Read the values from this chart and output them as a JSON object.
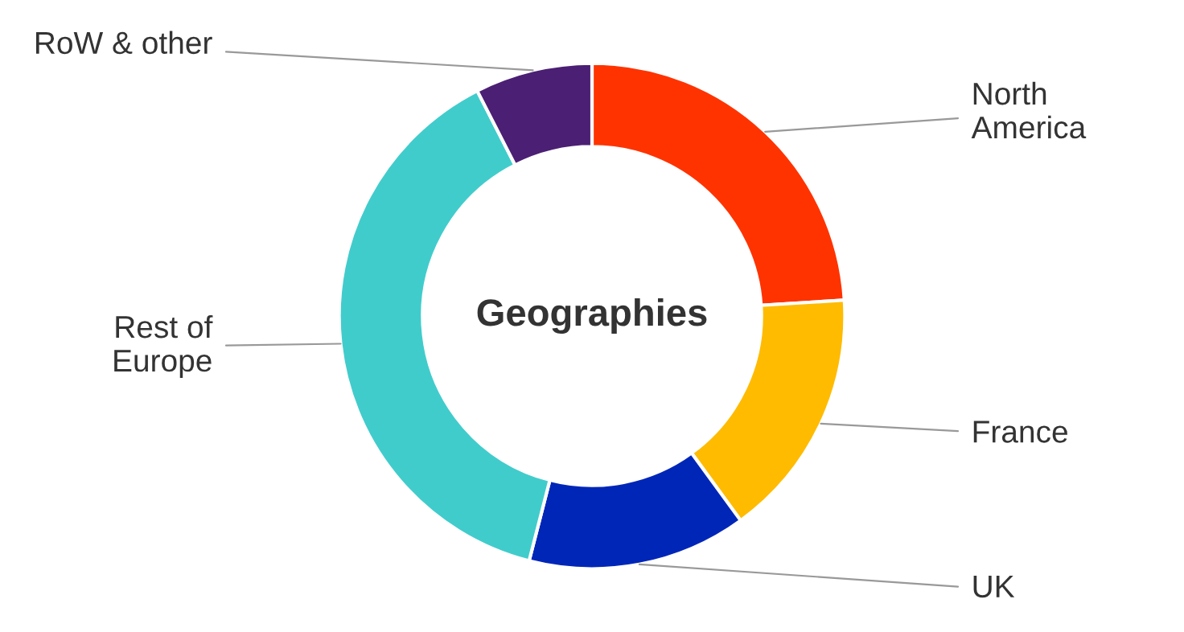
{
  "chart_data": {
    "type": "donut",
    "title": "Geographies",
    "categories": [
      "North\nAmerica",
      "France",
      "UK",
      "Rest of\nEurope",
      "RoW & other"
    ],
    "values": [
      24,
      16,
      14,
      38.5,
      7.5
    ],
    "colors": [
      "#ff3300",
      "#ffbb00",
      "#0026b8",
      "#41cccc",
      "#4b1f74"
    ],
    "legend": false
  }
}
